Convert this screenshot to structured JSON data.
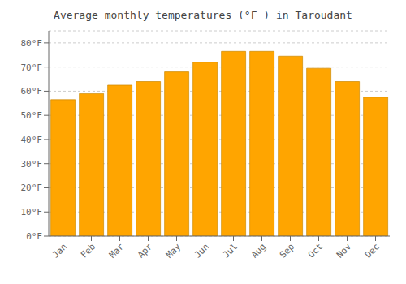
{
  "chart_data": {
    "type": "bar",
    "title": "Average monthly temperatures (°F ) in Taroudant",
    "categories": [
      "Jan",
      "Feb",
      "Mar",
      "Apr",
      "May",
      "Jun",
      "Jul",
      "Aug",
      "Sep",
      "Oct",
      "Nov",
      "Dec"
    ],
    "values": [
      56.5,
      59.0,
      62.5,
      64.0,
      68.0,
      72.0,
      76.5,
      76.5,
      74.5,
      69.5,
      64.0,
      57.5
    ],
    "color": "#FFA500",
    "ylim": [
      0,
      85
    ],
    "yticks": [
      {
        "value": 0,
        "label": "0°F"
      },
      {
        "value": 10,
        "label": "10°F"
      },
      {
        "value": 20,
        "label": "20°F"
      },
      {
        "value": 30,
        "label": "30°F"
      },
      {
        "value": 40,
        "label": "40°F"
      },
      {
        "value": 50,
        "label": "50°F"
      },
      {
        "value": 60,
        "label": "60°F"
      },
      {
        "value": 70,
        "label": "70°F"
      },
      {
        "value": 80,
        "label": "80°F"
      }
    ],
    "grid": true
  }
}
